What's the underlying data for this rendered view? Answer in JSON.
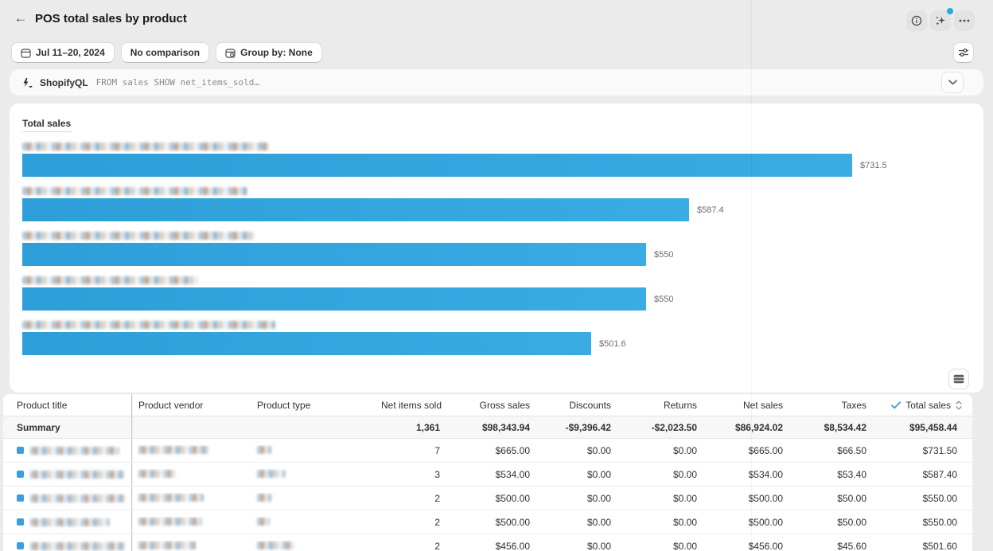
{
  "page": {
    "title": "POS total sales by product"
  },
  "toolbar": {
    "date_range": "Jul 11–20, 2024",
    "comparison": "No comparison",
    "group_by": "Group by: None"
  },
  "query_bar": {
    "brand": "ShopifyQL",
    "query": "FROM sales SHOW net_items_sold…"
  },
  "icons": {
    "info": "info-circle",
    "insights": "magic-sparkle",
    "more": "ellipsis",
    "filter": "adjust-sliders",
    "calendar": "calendar",
    "group_by": "calendar-clock",
    "query": "lightning-bolt",
    "collapse": "chevron-down",
    "table_view": "table-rows",
    "sorted_check": "check",
    "sort": "sort-carets"
  },
  "colors": {
    "bar_blue": "#2e9ed8",
    "check_blue": "#2d9fd8",
    "notification_dot": "#29a9e0",
    "page_bg": "#ebebeb",
    "summary_bg": "#f7f7f7"
  },
  "chart_data": {
    "type": "bar",
    "orientation": "horizontal",
    "title": "Total sales",
    "categories": [
      "[blurred product title]",
      "[blurred product title]",
      "[blurred product title]",
      "[blurred product title]",
      "[blurred product title]"
    ],
    "categories_redacted": true,
    "values": [
      731.5,
      587.4,
      550,
      550,
      501.6
    ],
    "value_labels": [
      "$731.5",
      "$587.4",
      "$550",
      "$550",
      "$501.6"
    ],
    "xlabel": "",
    "ylabel": "",
    "grid": "off",
    "legend": "none"
  },
  "table": {
    "columns": [
      "Product title",
      "Product vendor",
      "Product type",
      "Net items sold",
      "Gross sales",
      "Discounts",
      "Returns",
      "Net sales",
      "Taxes",
      "Total sales"
    ],
    "sorted_column": "Total sales",
    "summary_label": "Summary",
    "summary": [
      "1,361",
      "$98,343.94",
      "-$9,396.42",
      "-$2,023.50",
      "$86,924.02",
      "$8,534.42",
      "$95,458.44"
    ],
    "rows": [
      {
        "cells": [
          "7",
          "$665.00",
          "$0.00",
          "$0.00",
          "$665.00",
          "$66.50",
          "$731.50"
        ]
      },
      {
        "cells": [
          "3",
          "$534.00",
          "$0.00",
          "$0.00",
          "$534.00",
          "$53.40",
          "$587.40"
        ]
      },
      {
        "cells": [
          "2",
          "$500.00",
          "$0.00",
          "$0.00",
          "$500.00",
          "$50.00",
          "$550.00"
        ]
      },
      {
        "cells": [
          "2",
          "$500.00",
          "$0.00",
          "$0.00",
          "$500.00",
          "$50.00",
          "$550.00"
        ]
      },
      {
        "cells": [
          "2",
          "$456.00",
          "$0.00",
          "$0.00",
          "$456.00",
          "$45.60",
          "$501.60"
        ]
      }
    ]
  }
}
